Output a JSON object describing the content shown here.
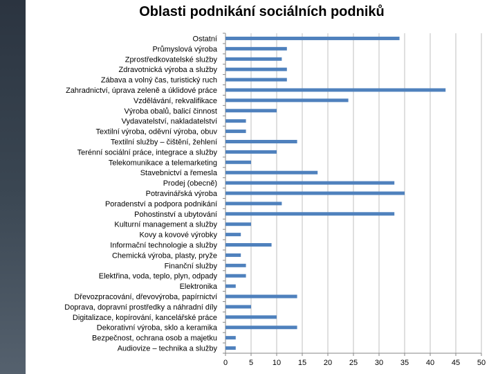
{
  "chart_data": {
    "type": "bar",
    "orientation": "horizontal",
    "title": "Oblasti podnikání sociálních podniků",
    "xlabel": "",
    "ylabel": "",
    "xlim": [
      0,
      50
    ],
    "xticks": [
      0,
      5,
      10,
      15,
      20,
      25,
      30,
      35,
      40,
      45,
      50
    ],
    "grid": true,
    "bar_color": "#4f81bd",
    "categories": [
      "Ostatní",
      "Průmyslová výroba",
      "Zprostředkovatelské služby",
      "Zdravotnická výroba a služby",
      "Zábava a volný čas, turistický ruch",
      "Zahradnictví, úprava zeleně a úklidové práce",
      "Vzdělávání, rekvalifikace",
      "Výroba obalů, balicí činnost",
      "Vydavatelství, nakladatelství",
      "Textilní výroba, oděvní výroba, obuv",
      "Textilní služby – čištění, žehlení",
      "Terénní sociální práce, integrace a služby",
      "Telekomunikace a telemarketing",
      "Stavebnictví a řemesla",
      "Prodej (obecně)",
      "Potravinářská výroba",
      "Poradenství a podpora podnikání",
      "Pohostinství a ubytování",
      "Kulturní management a služby",
      "Kovy a kovové výrobky",
      "Informační technologie a služby",
      "Chemická výroba, plasty, pryže",
      "Finanční služby",
      "Elektřina, voda, teplo, plyn, odpady",
      "Elektronika",
      "Dřevozpracování, dřevovýroba, papírnictví",
      "Doprava, dopravní prostředky a náhradní díly",
      "Digitalizace, kopírování, kancelářské práce",
      "Dekorativní výroba, sklo a keramika",
      "Bezpečnost, ochrana osob a majetku",
      "Audiovize – technika a služby"
    ],
    "values": [
      34,
      12,
      11,
      12,
      12,
      43,
      24,
      10,
      4,
      4,
      14,
      10,
      5,
      18,
      33,
      35,
      11,
      33,
      5,
      3,
      9,
      3,
      4,
      4,
      2,
      14,
      5,
      10,
      14,
      2,
      2
    ]
  }
}
